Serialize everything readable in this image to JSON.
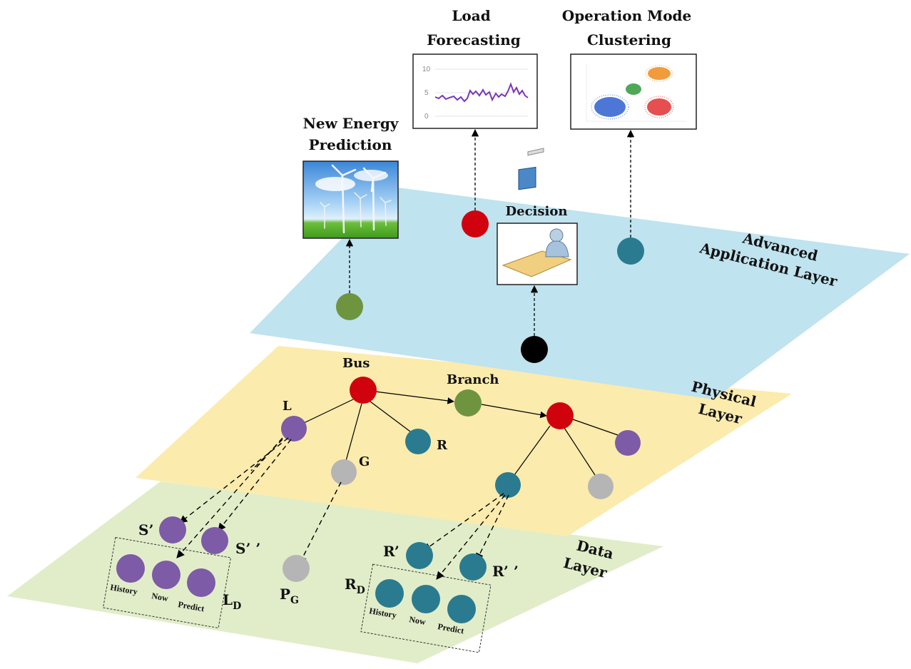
{
  "layers": {
    "advanced": {
      "line1": "Advanced",
      "line2": "Application Layer",
      "color": "#bfe3ef"
    },
    "physical": {
      "line1": "Physical",
      "line2": "Layer",
      "color": "#fbebad"
    },
    "data": {
      "line1": "Data",
      "line2": "Layer",
      "color": "#e1edc9"
    }
  },
  "applications": {
    "new_energy": {
      "line1": "New Energy",
      "line2": "Prediction"
    },
    "load": {
      "line1": "Load",
      "line2": "Forecasting",
      "ticks": [
        "10",
        "5",
        "0"
      ]
    },
    "clustering": {
      "line1": "Operation Mode",
      "line2": "Clustering"
    },
    "decision": {
      "label": "Decision"
    }
  },
  "physical_labels": {
    "bus": "Bus",
    "branch": "Branch",
    "l": "L",
    "g": "G",
    "r": "R"
  },
  "data_labels": {
    "s1": "S’",
    "s2": "S’ ’",
    "r1": "R’",
    "r2": "R’ ’",
    "ld_main": "L",
    "ld_sub": "D",
    "pg_main": "P",
    "pg_sub": "G",
    "rd_main": "R",
    "rd_sub": "D",
    "history": "History",
    "now": "Now",
    "predict": "Predict"
  },
  "colors": {
    "red": "#d0020e",
    "olive": "#6e9440",
    "teal": "#2a7b8f",
    "purple": "#7d5ba6",
    "gray": "#b5b5b5",
    "black": "#000000",
    "load_line": "#7b35b8"
  }
}
